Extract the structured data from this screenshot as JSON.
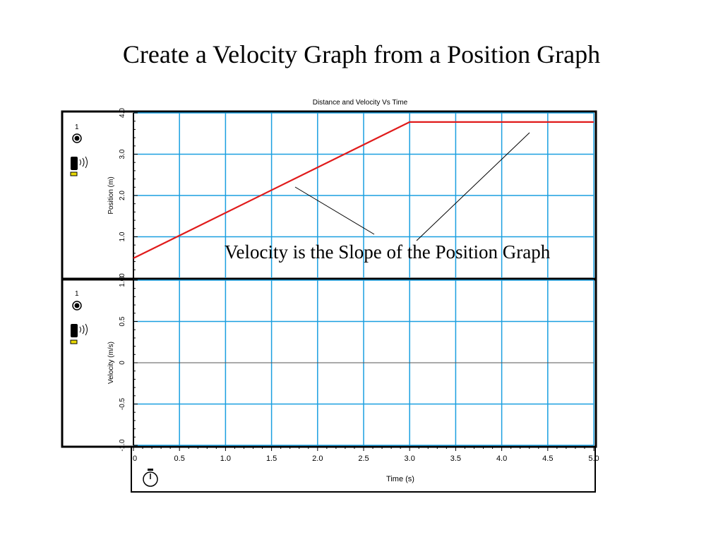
{
  "slide": {
    "title": "Create a Velocity Graph from a Position Graph",
    "annotation": "Velocity is the Slope of the Position Graph"
  },
  "chart_data": [
    {
      "type": "line",
      "title": "Distance and Velocity Vs Time",
      "xlabel": "Time (s)",
      "ylabel": "Position (m)",
      "xlim": [
        0,
        5
      ],
      "ylim": [
        0,
        4
      ],
      "grid": true,
      "x_ticks": [
        "0",
        "0.5",
        "1.0",
        "1.5",
        "2.0",
        "2.5",
        "3.0",
        "3.5",
        "4.0",
        "4.5",
        "5.0"
      ],
      "y_ticks": [
        "0",
        "1.0",
        "2.0",
        "3.0",
        "4.0"
      ],
      "series": [
        {
          "color": "#e01b1b",
          "x": [
            0,
            3,
            5
          ],
          "y": [
            0.48,
            3.78,
            3.78
          ]
        }
      ],
      "side_panel": {
        "channel_label": "1"
      }
    },
    {
      "type": "line",
      "xlabel": "Time (s)",
      "ylabel": "Velocity (m/s)",
      "xlim": [
        0,
        5
      ],
      "ylim": [
        -1.0,
        1.0
      ],
      "grid": true,
      "x_ticks": [
        "0",
        "0.5",
        "1.0",
        "1.5",
        "2.0",
        "2.5",
        "3.0",
        "3.5",
        "4.0",
        "4.5",
        "5.0"
      ],
      "y_ticks": [
        "-1.0",
        "-0.5",
        "0",
        "0.5",
        "1.00"
      ],
      "series": [],
      "side_panel": {
        "channel_label": "1"
      }
    }
  ],
  "colors": {
    "grid": "#1a9fe0",
    "position_line": "#e01b1b",
    "sensor_tag": "#e8d800",
    "frame": "#000000"
  },
  "icons": [
    "channel-radio-icon",
    "motion-sensor-icon",
    "stopwatch-icon"
  ]
}
